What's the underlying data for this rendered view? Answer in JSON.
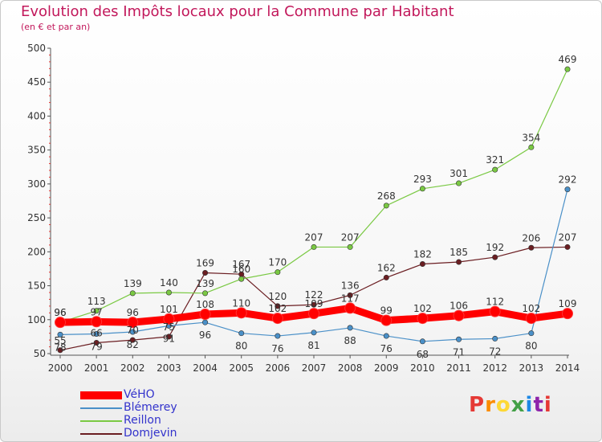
{
  "title": "Evolution des Impôts locaux pour la Commune par Habitant",
  "subtitle": "(en € et par an)",
  "logo": {
    "text": "Proxiti",
    "colors": [
      "#e53935",
      "#fb8c00",
      "#fdd835",
      "#43a047",
      "#1e88e5",
      "#8e24aa",
      "#e53935"
    ]
  },
  "chart_data": {
    "type": "line",
    "title": "Evolution des Impôts locaux pour la Commune par Habitant",
    "subtitle": "(en € et par an)",
    "x": [
      "2000",
      "2001",
      "2002",
      "2003",
      "2004",
      "2005",
      "2006",
      "2007",
      "2008",
      "2009",
      "2010",
      "2011",
      "2012",
      "2013",
      "2014"
    ],
    "ylim": [
      50,
      500
    ],
    "yticks": [
      50,
      100,
      150,
      200,
      250,
      300,
      350,
      400,
      450,
      500
    ],
    "grid": false,
    "legend_position": "bottom-left",
    "series": [
      {
        "name": "VéHO",
        "color": "#ff0000",
        "values": [
          96,
          97,
          96,
          101,
          108,
          110,
          102,
          109,
          117,
          99,
          102,
          106,
          112,
          102,
          109
        ],
        "labels": [
          "96",
          "97",
          "96",
          "101",
          "108",
          "110",
          "102",
          "109",
          "117",
          "99",
          "102",
          "106",
          "112",
          "102",
          "109"
        ]
      },
      {
        "name": "Blémerey",
        "color": "#4a90c8",
        "values": [
          78,
          79,
          82,
          91,
          96,
          80,
          76,
          81,
          88,
          76,
          68,
          71,
          72,
          80,
          292
        ],
        "labels": [
          "78",
          "79",
          "82",
          "91",
          "96",
          "80",
          "76",
          "81",
          "88",
          "76",
          "68",
          "71",
          "72",
          "80",
          "292"
        ]
      },
      {
        "name": "Reillon",
        "color": "#7ac943",
        "values": [
          96,
          113,
          139,
          140,
          139,
          160,
          170,
          207,
          207,
          268,
          293,
          301,
          321,
          354,
          469
        ],
        "labels": [
          "96",
          "113",
          "139",
          "140",
          "139",
          "160",
          "170",
          "207",
          "207",
          "268",
          "293",
          "301",
          "321",
          "354",
          "469"
        ]
      },
      {
        "name": "Domjevin",
        "color": "#6b1e22",
        "values": [
          55,
          66,
          70,
          75,
          169,
          167,
          120,
          122,
          136,
          162,
          182,
          185,
          192,
          206,
          207
        ],
        "labels": [
          "55",
          "66",
          "70",
          "75",
          "169",
          "167",
          "120",
          "122",
          "136",
          "162",
          "182",
          "185",
          "192",
          "206",
          "207"
        ]
      }
    ]
  }
}
